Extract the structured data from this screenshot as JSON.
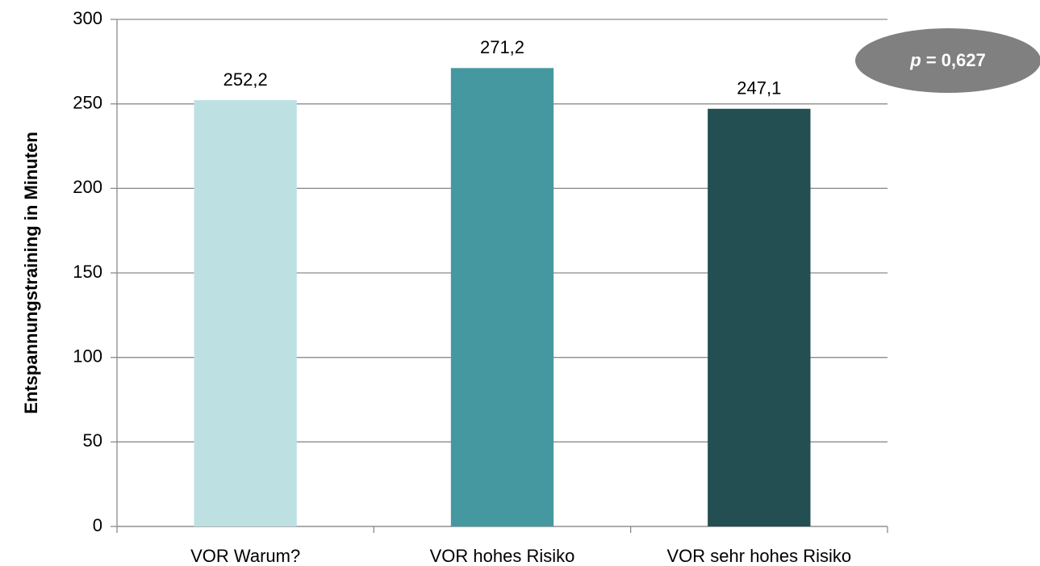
{
  "chart_data": {
    "type": "bar",
    "ylabel": "Entspannungstraining in Minuten",
    "categories": [
      "VOR Warum?",
      "VOR hohes Risiko",
      "VOR sehr hohes Risiko"
    ],
    "values": [
      252.2,
      271.2,
      247.1
    ],
    "value_labels": [
      "252,2",
      "271,2",
      "247,1"
    ],
    "colors": [
      "#bde0e3",
      "#4698a0",
      "#234e52"
    ],
    "ylim": [
      0,
      300
    ],
    "yticks": [
      0,
      50,
      100,
      150,
      200,
      250,
      300
    ],
    "grid": true,
    "annotation": {
      "symbol": "p",
      "text": "= 0,627"
    }
  }
}
